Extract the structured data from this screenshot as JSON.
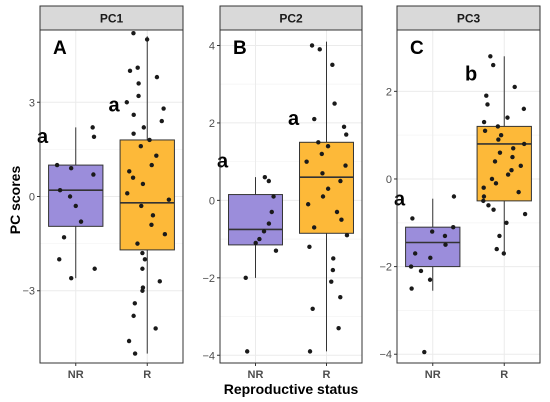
{
  "chart_data": [
    {
      "type": "box",
      "strip": "PC1",
      "panel_letter": "A",
      "ylim": [
        -5.3,
        5.3
      ],
      "yticks": [
        -3,
        0,
        3
      ],
      "ytick_labels": [
        "−3",
        "0",
        "3"
      ],
      "categories": [
        "NR",
        "R"
      ],
      "boxes": [
        {
          "group": "NR",
          "whisker_low": -2.6,
          "q1": -0.95,
          "median": 0.2,
          "q3": 1.0,
          "whisker_high": 2.2,
          "sig": "a",
          "sig_y": 1.7
        },
        {
          "group": "R",
          "whisker_low": -5.0,
          "q1": -1.7,
          "median": -0.2,
          "q3": 1.8,
          "whisker_high": 5.1,
          "sig": "a",
          "sig_y": 2.7
        }
      ],
      "points": [
        {
          "group": "NR",
          "values": [
            2.2,
            1.9,
            1.0,
            0.9,
            0.7,
            0.2,
            0.0,
            -0.3,
            -0.8,
            -1.3,
            -2.0,
            -2.3,
            -2.6
          ]
        },
        {
          "group": "R",
          "values": [
            5.2,
            5.0,
            4.1,
            4.0,
            3.8,
            3.6,
            3.2,
            3.0,
            2.8,
            2.6,
            2.4,
            2.2,
            2.0,
            1.8,
            1.6,
            1.3,
            1.0,
            0.8,
            0.6,
            0.4,
            0.1,
            -0.1,
            -0.3,
            -0.6,
            -0.9,
            -1.2,
            -1.5,
            -1.8,
            -2.0,
            -2.3,
            -2.7,
            -2.9,
            -3.0,
            -3.4,
            -3.8,
            -4.2,
            -4.6,
            -5.0
          ]
        }
      ]
    },
    {
      "type": "box",
      "strip": "PC2",
      "panel_letter": "B",
      "ylim": [
        -4.2,
        4.4
      ],
      "yticks": [
        -4,
        -2,
        0,
        2,
        4
      ],
      "ytick_labels": [
        "−4",
        "−2",
        "0",
        "2",
        "4"
      ],
      "categories": [
        "NR",
        "R"
      ],
      "boxes": [
        {
          "group": "NR",
          "whisker_low": -2.0,
          "q1": -1.15,
          "median": -0.75,
          "q3": 0.15,
          "whisker_high": 0.6,
          "sig": "a",
          "sig_y": 0.85
        },
        {
          "group": "R",
          "whisker_low": -3.9,
          "q1": -0.85,
          "median": 0.6,
          "q3": 1.5,
          "whisker_high": 4.1,
          "sig": "a",
          "sig_y": 1.95
        }
      ],
      "points": [
        {
          "group": "NR",
          "values": [
            0.6,
            0.5,
            0.1,
            -0.3,
            -0.6,
            -0.8,
            -1.0,
            -1.1,
            -1.3,
            -2.0,
            -3.9
          ]
        },
        {
          "group": "R",
          "values": [
            4.0,
            3.9,
            3.5,
            2.5,
            2.1,
            1.9,
            1.7,
            1.5,
            1.4,
            1.2,
            1.0,
            0.9,
            0.7,
            0.5,
            0.3,
            0.1,
            -0.1,
            -0.3,
            -0.5,
            -0.7,
            -0.9,
            -1.2,
            -1.5,
            -1.8,
            -2.1,
            -2.5,
            -2.8,
            -3.3,
            -3.9
          ]
        }
      ]
    },
    {
      "type": "box",
      "strip": "PC3",
      "panel_letter": "C",
      "ylim": [
        -4.2,
        3.4
      ],
      "yticks": [
        -4,
        -2,
        0,
        2
      ],
      "ytick_labels": [
        "−4",
        "−2",
        "0",
        "2"
      ],
      "categories": [
        "NR",
        "R"
      ],
      "boxes": [
        {
          "group": "NR",
          "whisker_low": -2.55,
          "q1": -2.0,
          "median": -1.45,
          "q3": -1.1,
          "whisker_high": -0.45,
          "sig": "a",
          "sig_y": -0.6
        },
        {
          "group": "R",
          "whisker_low": -1.75,
          "q1": -0.5,
          "median": 0.8,
          "q3": 1.2,
          "whisker_high": 2.8,
          "sig": "b",
          "sig_y": 2.25
        }
      ],
      "points": [
        {
          "group": "NR",
          "values": [
            -0.4,
            -0.9,
            -1.1,
            -1.2,
            -1.3,
            -1.5,
            -1.7,
            -1.8,
            -2.0,
            -2.1,
            -2.3,
            -2.5,
            -3.95
          ]
        },
        {
          "group": "R",
          "values": [
            2.8,
            2.6,
            2.1,
            1.9,
            1.7,
            1.6,
            1.4,
            1.3,
            1.2,
            1.1,
            1.0,
            0.9,
            0.8,
            0.7,
            0.6,
            0.5,
            0.4,
            0.3,
            0.2,
            0.1,
            0.0,
            -0.1,
            -0.2,
            -0.3,
            -0.4,
            -0.5,
            -0.6,
            -0.7,
            -0.8,
            -1.0,
            -1.3,
            -1.6,
            -1.7
          ]
        }
      ]
    }
  ],
  "axes": {
    "ylabel": "PC scores",
    "xlabel": "Reproductive status"
  },
  "colors": {
    "NR": "#9b8ddb",
    "R": "#fdb939",
    "box_line": "#333333",
    "point": "#1a1a1a",
    "strip_fill": "#d9d9d9",
    "grid_major": "#ebebeb",
    "grid_minor": "#f5f5f5",
    "panel_border": "#333333"
  },
  "grid": true
}
